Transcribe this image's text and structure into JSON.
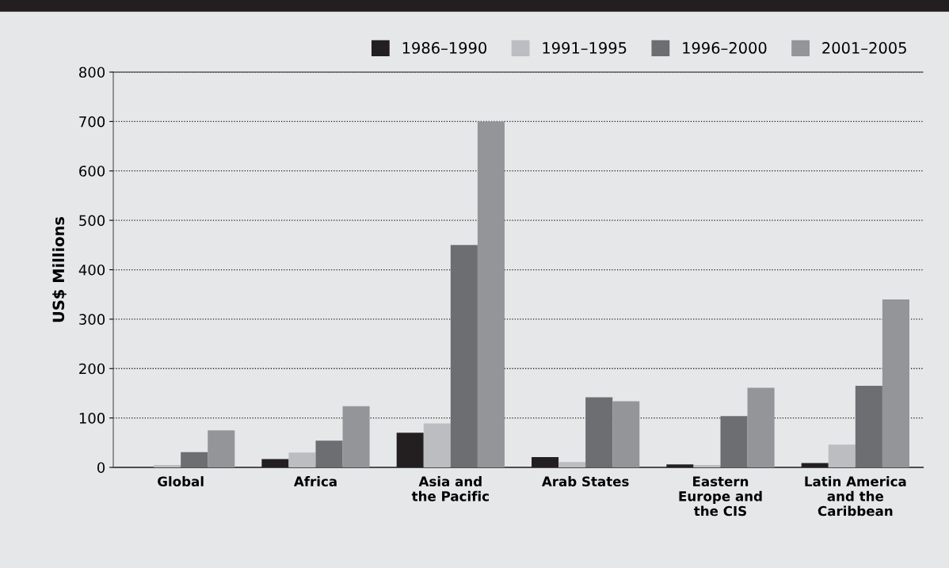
{
  "chart_data": {
    "type": "bar",
    "ylabel": "US$ Millions",
    "categories": [
      "Global",
      "Africa",
      "Asia and\nthe Pacific",
      "Arab States",
      "Eastern\nEurope and\nthe CIS",
      "Latin America\nand the\nCaribbean"
    ],
    "series": [
      {
        "name": "1986–1990",
        "color": "#231f20",
        "values": [
          0,
          17,
          70,
          21,
          6,
          9
        ]
      },
      {
        "name": "1991–1995",
        "color": "#bcbdc0",
        "values": [
          5,
          30,
          89,
          11,
          5,
          46
        ]
      },
      {
        "name": "1996–2000",
        "color": "#6d6e71",
        "values": [
          31,
          54,
          450,
          142,
          104,
          165
        ]
      },
      {
        "name": "2001–2005",
        "color": "#939598",
        "values": [
          75,
          124,
          700,
          134,
          161,
          340
        ]
      }
    ],
    "ylim": [
      0,
      800
    ],
    "yticks": [
      0,
      100,
      200,
      300,
      400,
      500,
      600,
      700,
      800
    ],
    "grid": "y",
    "legend": "top right"
  }
}
